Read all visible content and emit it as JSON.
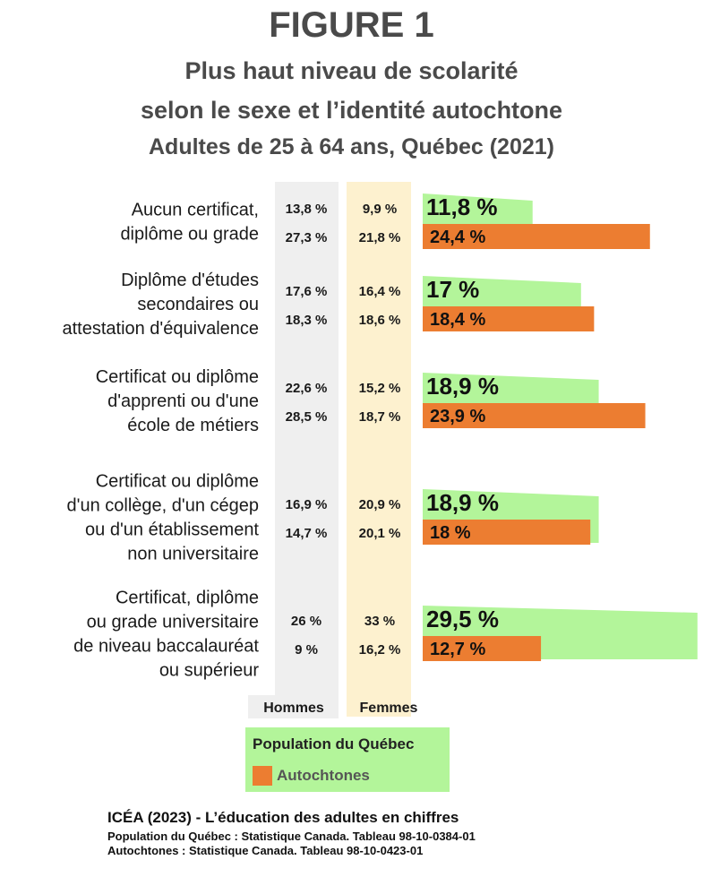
{
  "header": {
    "figure_label": "FIGURE 1",
    "title_line1": "Plus haut niveau de scolarité",
    "title_line2": "selon le sexe et l’identité autochtone",
    "subtitle": "Adultes de 25 à 64 ans, Québec (2021)"
  },
  "colors": {
    "quebec": "#b3f59a",
    "autochtones": "#ec7d31",
    "hommes_column": "#efefef",
    "femmes_column": "#fdf1cf"
  },
  "chart_data": {
    "type": "bar",
    "orientation": "horizontal",
    "categories": [
      [
        "Aucun certificat,",
        "diplôme ou grade"
      ],
      [
        "Diplôme d'études",
        "secondaires ou",
        "attestation d'équivalence"
      ],
      [
        "Certificat ou diplôme",
        "d'apprenti ou d'une",
        "école de métiers"
      ],
      [
        "Certificat ou diplôme",
        "d'un collège, d'un cégep",
        "ou d'un établissement",
        "non universitaire"
      ],
      [
        "Certificat, diplôme",
        "ou grade universitaire",
        "de niveau baccalauréat",
        "ou supérieur"
      ]
    ],
    "series": [
      {
        "name": "Population du Québec",
        "values": [
          11.8,
          17,
          18.9,
          18.9,
          29.5
        ],
        "labels": [
          "11,8 %",
          "17 %",
          "18,9 %",
          "18,9 %",
          "29,5 %"
        ],
        "hommes": [
          "13,8 %",
          "17,6 %",
          "22,6 %",
          "16,9 %",
          "26 %"
        ],
        "femmes": [
          "9,9 %",
          "16,4 %",
          "15,2 %",
          "20,9 %",
          "33 %"
        ]
      },
      {
        "name": "Autochtones",
        "values": [
          24.4,
          18.4,
          23.9,
          18,
          12.7
        ],
        "labels": [
          "24,4 %",
          "18,4 %",
          "23,9 %",
          "18 %",
          "12,7 %"
        ],
        "hommes": [
          "27,3 %",
          "18,3 %",
          "28,5 %",
          "14,7 %",
          "9 %"
        ],
        "femmes": [
          "21,8 %",
          "18,6 %",
          "18,7 %",
          "20,1 %",
          "16,2 %"
        ]
      }
    ],
    "column_headers": {
      "hommes": "Hommes",
      "femmes": "Femmes"
    },
    "xlim": [
      0,
      30
    ]
  },
  "legend": {
    "quebec": "Population du Québec",
    "autochtones": "Autochtones"
  },
  "footer": {
    "title": "ICÉA (2023) - L’éducation des adultes en chiffres",
    "source_quebec": "Population du Québec :  Statistique Canada. Tableau 98-10-0384-01",
    "source_autochtones": "Autochtones : Statistique Canada. Tableau 98-10-0423-01"
  }
}
